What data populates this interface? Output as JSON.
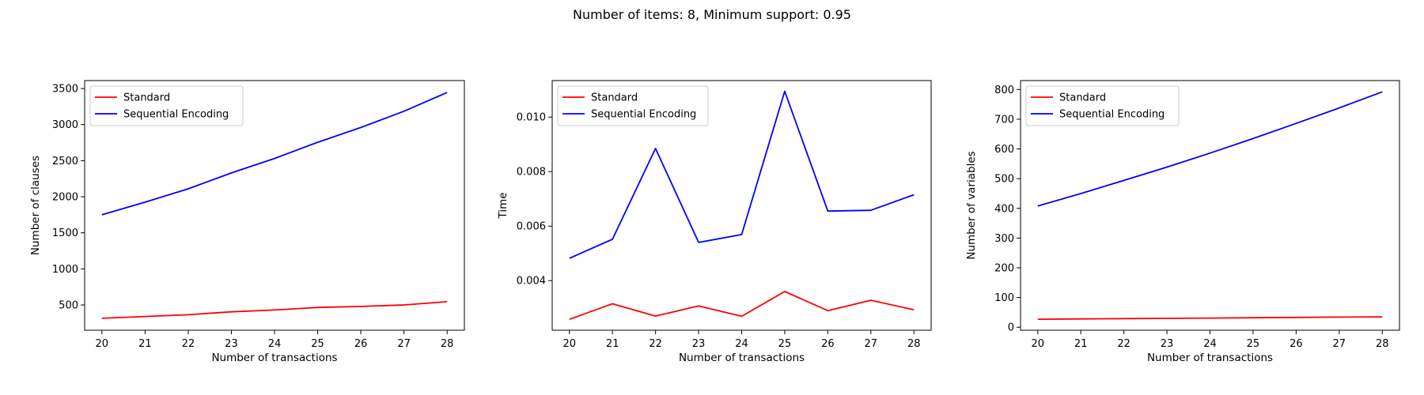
{
  "suptitle": "Number of items: 8, Minimum support: 0.95",
  "colors": {
    "standard": "#ff0000",
    "sequential": "#0000ff"
  },
  "chart_data": [
    {
      "type": "line",
      "xlabel": "Number of transactions",
      "ylabel": "Number of clauses",
      "x": [
        20,
        21,
        22,
        23,
        24,
        25,
        26,
        27,
        28
      ],
      "xlim": [
        19.6,
        28.4
      ],
      "ylim": [
        150,
        3610
      ],
      "yticks": [
        500,
        1000,
        1500,
        2000,
        2500,
        3000,
        3500
      ],
      "ytick_labels": [
        "500",
        "1000",
        "1500",
        "2000",
        "2500",
        "3000",
        "3500"
      ],
      "legend": "top-left",
      "series": [
        {
          "name": "Standard",
          "color": "#ff0000",
          "values": [
            315,
            340,
            365,
            405,
            430,
            465,
            480,
            500,
            545
          ]
        },
        {
          "name": "Sequential Encoding",
          "color": "#0000ff",
          "values": [
            1750,
            1925,
            2110,
            2330,
            2530,
            2755,
            2960,
            3185,
            3445
          ]
        }
      ]
    },
    {
      "type": "line",
      "xlabel": "Number of transactions",
      "ylabel": "Time",
      "x": [
        20,
        21,
        22,
        23,
        24,
        25,
        26,
        27,
        28
      ],
      "xlim": [
        19.6,
        28.4
      ],
      "ylim": [
        0.00218,
        0.01134
      ],
      "yticks": [
        0.004,
        0.006,
        0.008,
        0.01
      ],
      "ytick_labels": [
        "0.004",
        "0.006",
        "0.008",
        "0.010"
      ],
      "legend": "top-left",
      "series": [
        {
          "name": "Standard",
          "color": "#ff0000",
          "values": [
            0.00258,
            0.00315,
            0.0027,
            0.00307,
            0.00269,
            0.0036,
            0.0029,
            0.00328,
            0.00293
          ]
        },
        {
          "name": "Sequential Encoding",
          "color": "#0000ff",
          "values": [
            0.00482,
            0.00552,
            0.00885,
            0.0054,
            0.00569,
            0.01095,
            0.00655,
            0.00658,
            0.00715
          ]
        }
      ]
    },
    {
      "type": "line",
      "xlabel": "Number of transactions",
      "ylabel": "Number of variables",
      "x": [
        20,
        21,
        22,
        23,
        24,
        25,
        26,
        27,
        28
      ],
      "xlim": [
        19.6,
        28.4
      ],
      "ylim": [
        -10,
        830
      ],
      "yticks": [
        0,
        100,
        200,
        300,
        400,
        500,
        600,
        700,
        800
      ],
      "ytick_labels": [
        "0",
        "100",
        "200",
        "300",
        "400",
        "500",
        "600",
        "700",
        "800"
      ],
      "legend": "top-left",
      "series": [
        {
          "name": "Standard",
          "color": "#ff0000",
          "values": [
            27,
            28,
            29,
            30,
            31,
            32,
            33,
            34,
            35
          ]
        },
        {
          "name": "Sequential Encoding",
          "color": "#0000ff",
          "values": [
            408,
            450,
            494,
            539,
            586,
            635,
            686,
            738,
            792
          ]
        }
      ]
    }
  ]
}
